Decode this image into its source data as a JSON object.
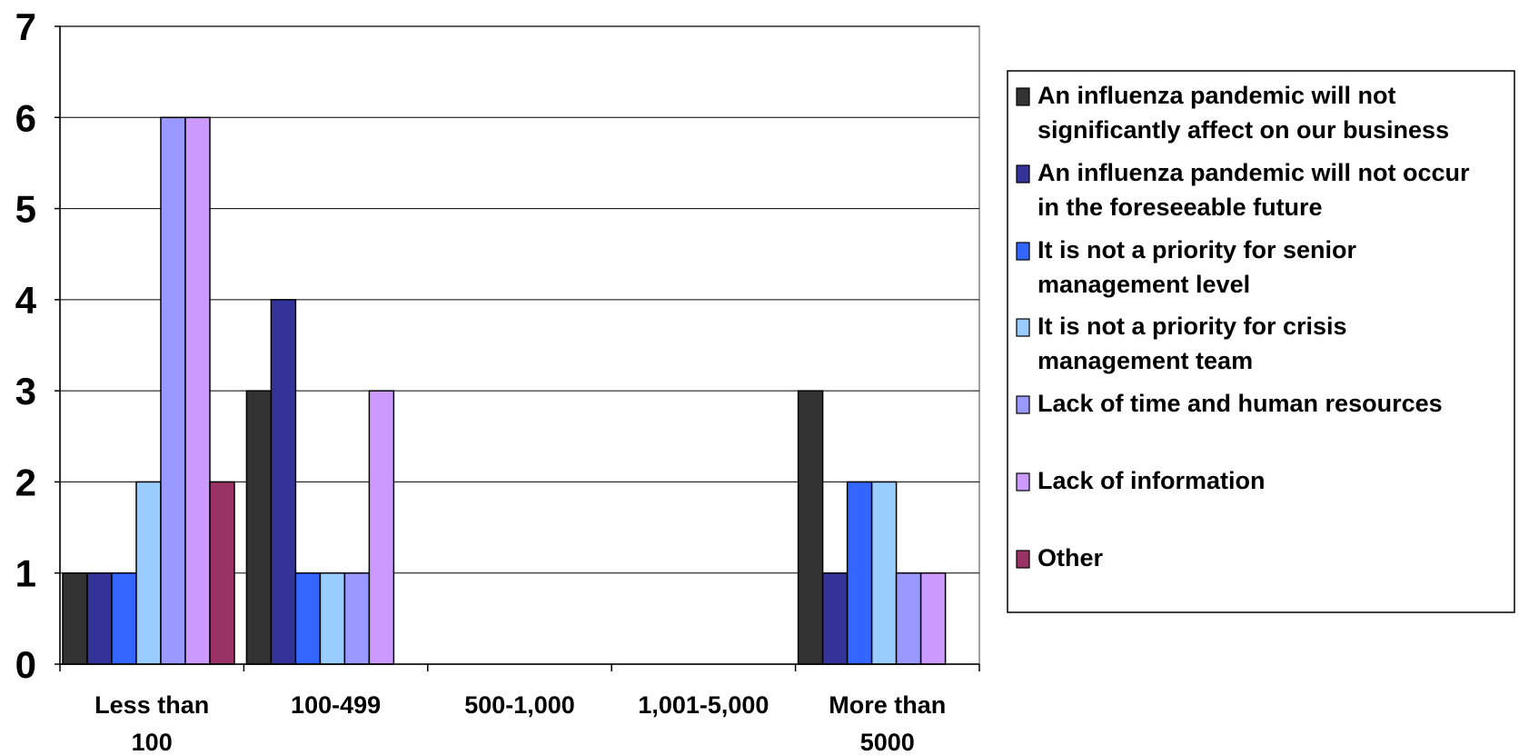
{
  "chart_data": {
    "type": "bar",
    "title": "",
    "xlabel": "",
    "ylabel": "",
    "ylim": [
      0,
      7
    ],
    "yticks": [
      0,
      1,
      2,
      3,
      4,
      5,
      6,
      7
    ],
    "grid": true,
    "legend_position": "right",
    "categories": [
      [
        "Less than",
        "100"
      ],
      [
        "100-499"
      ],
      [
        "500-1,000"
      ],
      [
        "1,001-5,000"
      ],
      [
        "More than",
        "5000"
      ]
    ],
    "series": [
      {
        "name": "An influenza pandemic will not significantly affect on our business",
        "name_lines": [
          "An influenza pandemic will not",
          "significantly affect on our business"
        ],
        "color": "#333333",
        "values": [
          1,
          3,
          0,
          0,
          3
        ]
      },
      {
        "name": "An influenza pandemic will not occur in the foreseeable future",
        "name_lines": [
          "An influenza pandemic will not occur",
          "in the foreseeable future"
        ],
        "color": "#333399",
        "values": [
          1,
          4,
          0,
          0,
          1
        ]
      },
      {
        "name": "It is not a priority for senior management level",
        "name_lines": [
          "It is not a priority for senior",
          "management level"
        ],
        "color": "#3366FF",
        "values": [
          1,
          1,
          0,
          0,
          2
        ]
      },
      {
        "name": "It is not a priority for crisis management team",
        "name_lines": [
          "It is not a priority for crisis",
          "management team"
        ],
        "color": "#99CCFF",
        "values": [
          2,
          1,
          0,
          0,
          2
        ]
      },
      {
        "name": "Lack of time and human resources",
        "name_lines": [
          "Lack of time and human resources"
        ],
        "color": "#9999FF",
        "values": [
          6,
          1,
          0,
          0,
          1
        ]
      },
      {
        "name": "Lack of information",
        "name_lines": [
          "Lack of information"
        ],
        "color": "#CC99FF",
        "values": [
          6,
          3,
          0,
          0,
          1
        ]
      },
      {
        "name": "Other",
        "name_lines": [
          "Other"
        ],
        "color": "#993366",
        "values": [
          2,
          0,
          0,
          0,
          0
        ]
      }
    ]
  }
}
